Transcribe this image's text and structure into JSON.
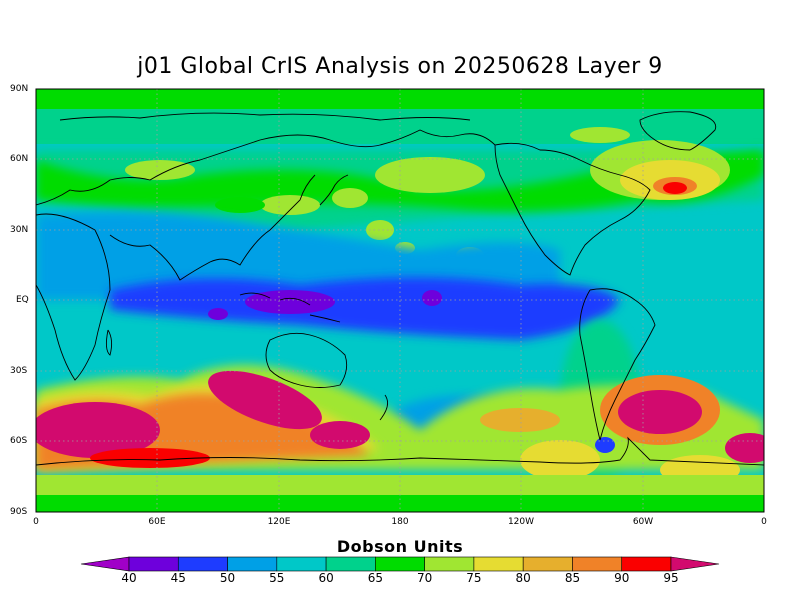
{
  "title": "j01 Global CrIS Analysis on 20250628 Layer 9",
  "lat_labels": [
    "90N",
    "60N",
    "30N",
    "EQ",
    "30S",
    "60S",
    "90S"
  ],
  "lon_labels": [
    "0",
    "60E",
    "120E",
    "180",
    "120W",
    "60W",
    "0"
  ],
  "colorbar": {
    "title": "Dobson Units",
    "levels": [
      "40",
      "45",
      "50",
      "55",
      "60",
      "65",
      "70",
      "75",
      "80",
      "85",
      "90",
      "95"
    ],
    "colors": [
      "#a000c8",
      "#6e00dc",
      "#1e3cff",
      "#00a0e6",
      "#00c8c8",
      "#00d28c",
      "#00dc00",
      "#a0e632",
      "#e6dc32",
      "#e6af2d",
      "#f08228",
      "#fa0000",
      "#d20a6e"
    ]
  },
  "colors": {
    "land_outline": "#000000",
    "grid": "#a0a0a0",
    "background_field": "#00c8c8"
  }
}
